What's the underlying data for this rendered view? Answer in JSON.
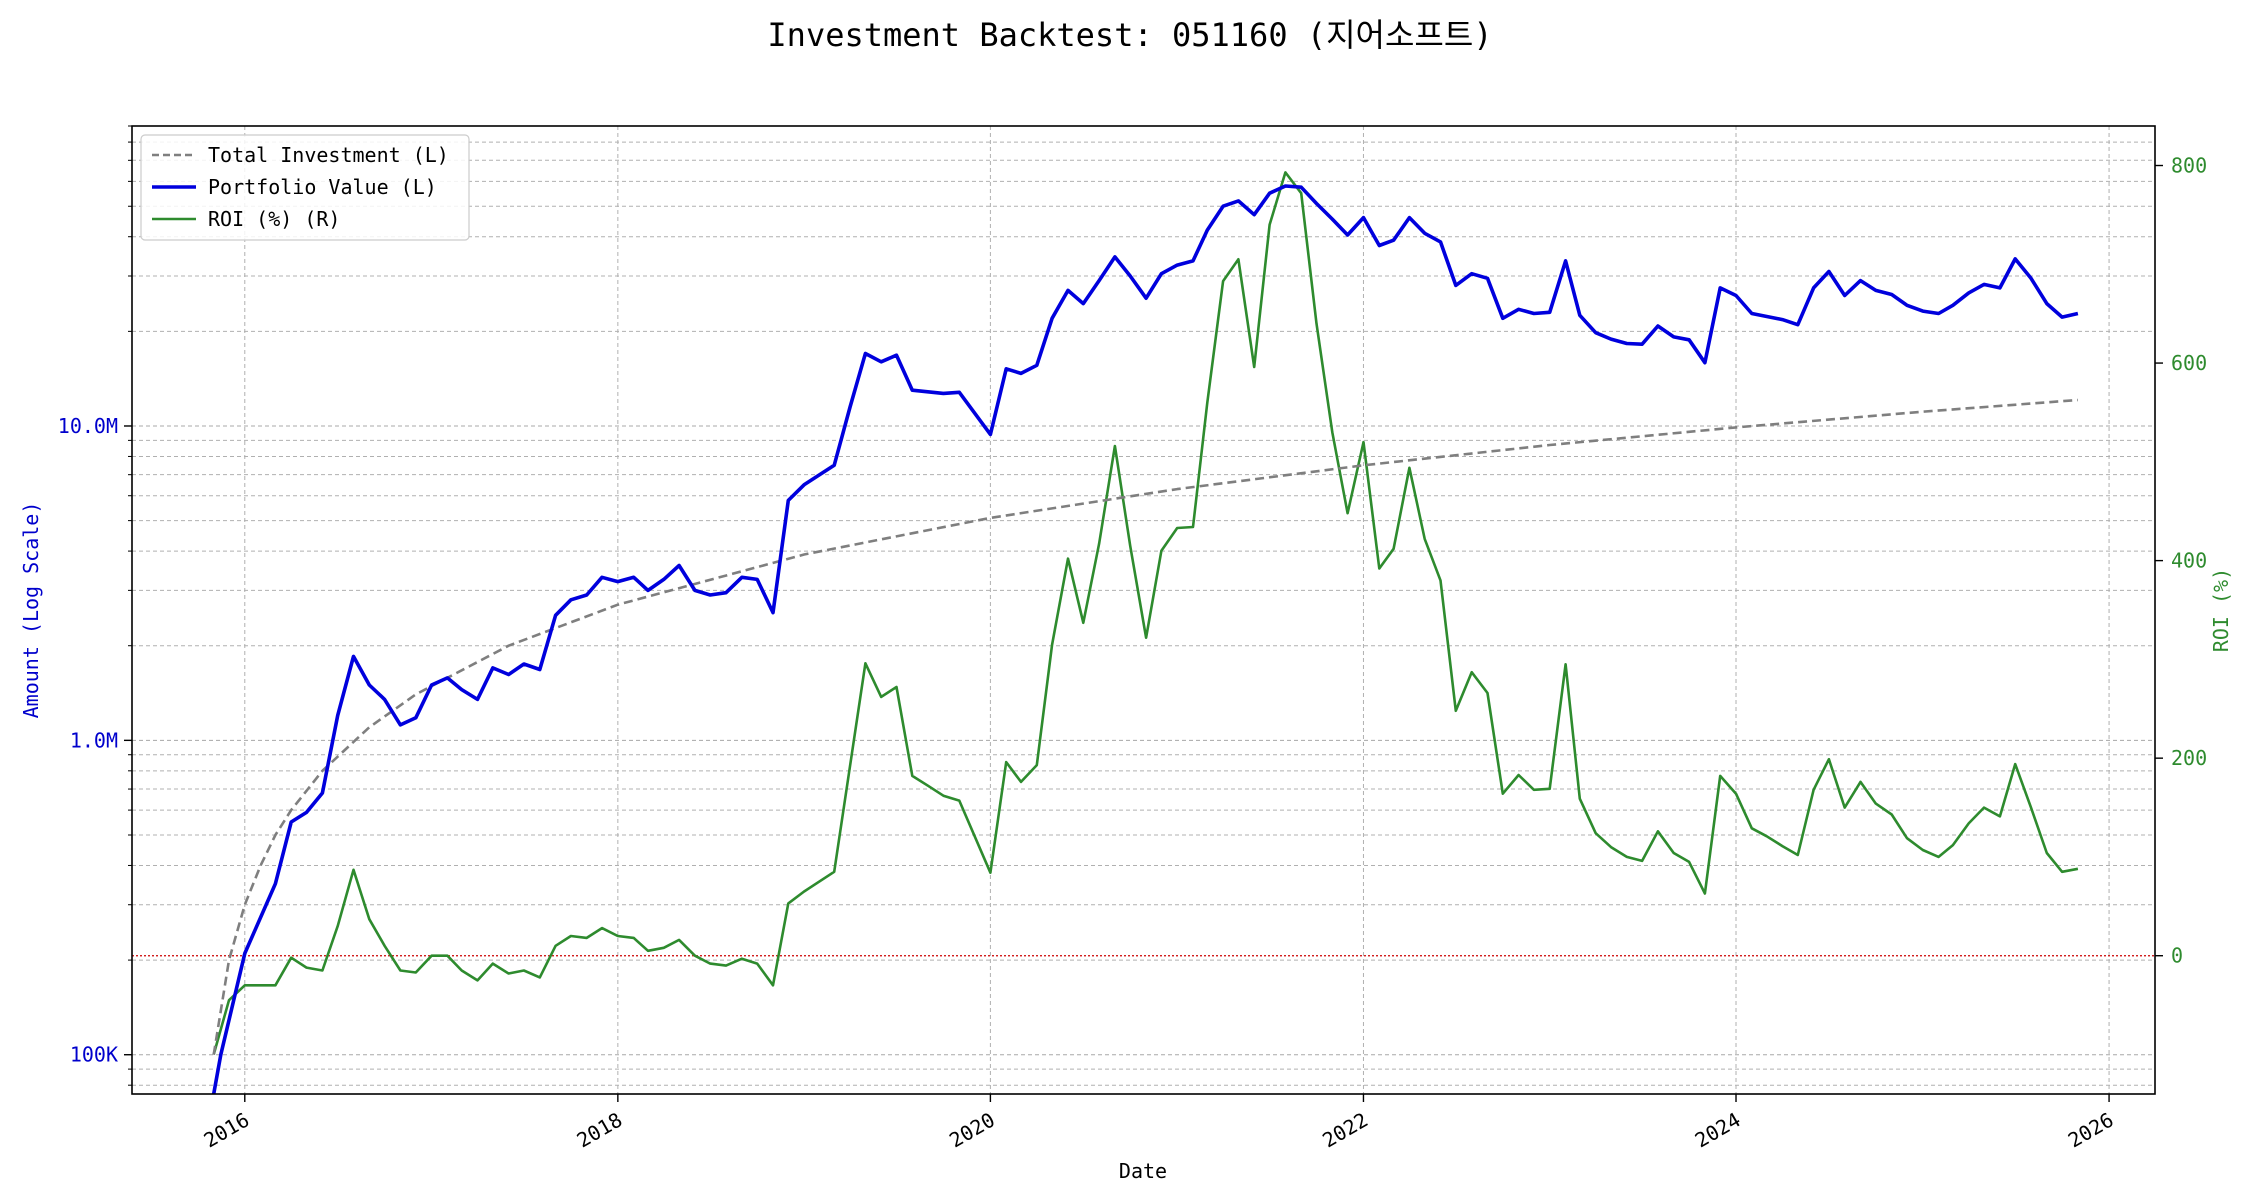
{
  "chart_data": {
    "type": "line",
    "title": "Investment Backtest: 051160 (지어소프트)",
    "xlabel": "Date",
    "ylabel_left": "Amount (Log Scale)",
    "ylabel_right": "ROI (%)",
    "left_scale": "log",
    "left_ylim": [
      75000,
      90000000
    ],
    "right_ylim": [
      -140,
      840
    ],
    "x_range": [
      "2015-05-25",
      "2026-04-01"
    ],
    "x_ticks": [
      {
        "date": "2016-01-01",
        "label": "2016"
      },
      {
        "date": "2018-01-01",
        "label": "2018"
      },
      {
        "date": "2020-01-01",
        "label": "2020"
      },
      {
        "date": "2022-01-01",
        "label": "2022"
      },
      {
        "date": "2024-01-01",
        "label": "2024"
      },
      {
        "date": "2026-01-01",
        "label": "2026"
      }
    ],
    "left_ticks": [
      {
        "value": 100000,
        "label": "100K"
      },
      {
        "value": 1000000,
        "label": "1.0M"
      },
      {
        "value": 10000000,
        "label": "10.0M"
      }
    ],
    "right_ticks": [
      {
        "value": 0,
        "label": "0"
      },
      {
        "value": 200,
        "label": "200"
      },
      {
        "value": 400,
        "label": "400"
      },
      {
        "value": 600,
        "label": "600"
      },
      {
        "value": 800,
        "label": "800"
      }
    ],
    "grid": true,
    "legend_position": "top-left",
    "colors": {
      "total_investment": "#7f7f7f",
      "portfolio_value": "#0000dd",
      "roi": "#2e8b2e",
      "zero_line": "#cc0000",
      "left_axis_text": "#0000cc",
      "right_axis_text": "#2e8b2e"
    },
    "series": [
      {
        "name": "Total Investment (L)",
        "axis": "left",
        "style": "dashed",
        "points": [
          [
            "2015-11-01",
            100000
          ],
          [
            "2015-12-01",
            200000
          ],
          [
            "2016-01-01",
            300000
          ],
          [
            "2016-02-01",
            400000
          ],
          [
            "2016-03-01",
            500000
          ],
          [
            "2016-04-01",
            600000
          ],
          [
            "2016-06-01",
            800000
          ],
          [
            "2016-09-01",
            1100000
          ],
          [
            "2016-12-01",
            1400000
          ],
          [
            "2017-06-01",
            2000000
          ],
          [
            "2018-01-01",
            2700000
          ],
          [
            "2019-01-01",
            3900000
          ],
          [
            "2020-01-01",
            5100000
          ],
          [
            "2021-01-01",
            6300000
          ],
          [
            "2022-01-01",
            7500000
          ],
          [
            "2023-01-01",
            8700000
          ],
          [
            "2024-01-01",
            9900000
          ],
          [
            "2025-01-01",
            11100000
          ],
          [
            "2025-11-01",
            12100000
          ]
        ]
      },
      {
        "name": "Portfolio Value (L)",
        "axis": "left",
        "style": "solid",
        "points": [
          [
            "2015-11-01",
            45000
          ],
          [
            "2015-11-15",
            100000
          ],
          [
            "2016-01-01",
            210000
          ],
          [
            "2016-03-01",
            350000
          ],
          [
            "2016-04-01",
            550000
          ],
          [
            "2016-05-01",
            590000
          ],
          [
            "2016-06-01",
            680000
          ],
          [
            "2016-07-01",
            1200000
          ],
          [
            "2016-08-01",
            1850000
          ],
          [
            "2016-09-01",
            1500000
          ],
          [
            "2016-10-01",
            1350000
          ],
          [
            "2016-11-01",
            1120000
          ],
          [
            "2016-12-01",
            1180000
          ],
          [
            "2017-01-01",
            1500000
          ],
          [
            "2017-02-01",
            1580000
          ],
          [
            "2017-03-01",
            1450000
          ],
          [
            "2017-04-01",
            1350000
          ],
          [
            "2017-05-01",
            1700000
          ],
          [
            "2017-06-01",
            1620000
          ],
          [
            "2017-07-01",
            1750000
          ],
          [
            "2017-08-01",
            1680000
          ],
          [
            "2017-09-01",
            2500000
          ],
          [
            "2017-10-01",
            2800000
          ],
          [
            "2017-11-01",
            2900000
          ],
          [
            "2017-12-01",
            3300000
          ],
          [
            "2018-01-01",
            3200000
          ],
          [
            "2018-02-01",
            3300000
          ],
          [
            "2018-03-01",
            3000000
          ],
          [
            "2018-04-01",
            3250000
          ],
          [
            "2018-05-01",
            3600000
          ],
          [
            "2018-06-01",
            3000000
          ],
          [
            "2018-07-01",
            2900000
          ],
          [
            "2018-08-01",
            2950000
          ],
          [
            "2018-09-01",
            3300000
          ],
          [
            "2018-10-01",
            3250000
          ],
          [
            "2018-11-01",
            2550000
          ],
          [
            "2018-12-01",
            5800000
          ],
          [
            "2019-01-01",
            6500000
          ],
          [
            "2019-03-01",
            7500000
          ],
          [
            "2019-04-01",
            11500000
          ],
          [
            "2019-05-01",
            17000000
          ],
          [
            "2019-06-01",
            16000000
          ],
          [
            "2019-07-01",
            16800000
          ],
          [
            "2019-08-01",
            13000000
          ],
          [
            "2019-10-01",
            12700000
          ],
          [
            "2019-11-01",
            12800000
          ],
          [
            "2020-01-01",
            9400000
          ],
          [
            "2020-02-01",
            15200000
          ],
          [
            "2020-03-01",
            14700000
          ],
          [
            "2020-04-01",
            15600000
          ],
          [
            "2020-05-01",
            22000000
          ],
          [
            "2020-06-01",
            27000000
          ],
          [
            "2020-07-01",
            24500000
          ],
          [
            "2020-08-01",
            29000000
          ],
          [
            "2020-09-01",
            34500000
          ],
          [
            "2020-10-01",
            30000000
          ],
          [
            "2020-11-01",
            25500000
          ],
          [
            "2020-12-01",
            30500000
          ],
          [
            "2021-01-01",
            32500000
          ],
          [
            "2021-02-01",
            33500000
          ],
          [
            "2021-03-01",
            42000000
          ],
          [
            "2021-04-01",
            50000000
          ],
          [
            "2021-05-01",
            52000000
          ],
          [
            "2021-06-01",
            47000000
          ],
          [
            "2021-07-01",
            55000000
          ],
          [
            "2021-08-01",
            58000000
          ],
          [
            "2021-09-01",
            57500000
          ],
          [
            "2021-10-01",
            51000000
          ],
          [
            "2021-11-01",
            45500000
          ],
          [
            "2021-12-01",
            40500000
          ],
          [
            "2022-01-01",
            46000000
          ],
          [
            "2022-02-01",
            37500000
          ],
          [
            "2022-03-01",
            39000000
          ],
          [
            "2022-04-01",
            46000000
          ],
          [
            "2022-05-01",
            41000000
          ],
          [
            "2022-06-01",
            38500000
          ],
          [
            "2022-07-01",
            28000000
          ],
          [
            "2022-08-01",
            30500000
          ],
          [
            "2022-09-01",
            29500000
          ],
          [
            "2022-10-01",
            22000000
          ],
          [
            "2022-11-01",
            23500000
          ],
          [
            "2022-12-01",
            22800000
          ],
          [
            "2023-01-01",
            23000000
          ],
          [
            "2023-02-01",
            33500000
          ],
          [
            "2023-03-01",
            22500000
          ],
          [
            "2023-04-01",
            19800000
          ],
          [
            "2023-05-01",
            18900000
          ],
          [
            "2023-06-01",
            18300000
          ],
          [
            "2023-07-01",
            18200000
          ],
          [
            "2023-08-01",
            20800000
          ],
          [
            "2023-09-01",
            19200000
          ],
          [
            "2023-10-01",
            18800000
          ],
          [
            "2023-11-01",
            15900000
          ],
          [
            "2023-12-01",
            27500000
          ],
          [
            "2024-01-01",
            26000000
          ],
          [
            "2024-02-01",
            22800000
          ],
          [
            "2024-04-01",
            21800000
          ],
          [
            "2024-05-01",
            21000000
          ],
          [
            "2024-06-01",
            27500000
          ],
          [
            "2024-07-01",
            31000000
          ],
          [
            "2024-08-01",
            26000000
          ],
          [
            "2024-09-01",
            29000000
          ],
          [
            "2024-10-01",
            27000000
          ],
          [
            "2024-11-01",
            26200000
          ],
          [
            "2024-12-01",
            24200000
          ],
          [
            "2025-01-01",
            23200000
          ],
          [
            "2025-02-01",
            22800000
          ],
          [
            "2025-03-01",
            24200000
          ],
          [
            "2025-04-01",
            26500000
          ],
          [
            "2025-05-01",
            28200000
          ],
          [
            "2025-06-01",
            27500000
          ],
          [
            "2025-07-01",
            34000000
          ],
          [
            "2025-08-01",
            29500000
          ],
          [
            "2025-09-01",
            24500000
          ],
          [
            "2025-10-01",
            22200000
          ],
          [
            "2025-11-01",
            22800000
          ]
        ]
      },
      {
        "name": "ROI (%) (R)",
        "axis": "right",
        "style": "solid",
        "points": [
          [
            "2015-11-01",
            -100
          ],
          [
            "2015-12-01",
            -45
          ],
          [
            "2016-01-01",
            -30
          ],
          [
            "2016-03-01",
            -30
          ],
          [
            "2016-04-01",
            -2
          ],
          [
            "2016-05-01",
            -12
          ],
          [
            "2016-06-01",
            -15
          ],
          [
            "2016-07-01",
            30
          ],
          [
            "2016-08-01",
            87
          ],
          [
            "2016-09-01",
            37
          ],
          [
            "2016-10-01",
            10
          ],
          [
            "2016-11-01",
            -15
          ],
          [
            "2016-12-01",
            -17
          ],
          [
            "2017-01-01",
            0
          ],
          [
            "2017-02-01",
            0
          ],
          [
            "2017-03-01",
            -15
          ],
          [
            "2017-04-01",
            -25
          ],
          [
            "2017-05-01",
            -8
          ],
          [
            "2017-06-01",
            -18
          ],
          [
            "2017-07-01",
            -15
          ],
          [
            "2017-08-01",
            -22
          ],
          [
            "2017-09-01",
            10
          ],
          [
            "2017-10-01",
            20
          ],
          [
            "2017-11-01",
            18
          ],
          [
            "2017-12-01",
            28
          ],
          [
            "2018-01-01",
            20
          ],
          [
            "2018-02-01",
            18
          ],
          [
            "2018-03-01",
            5
          ],
          [
            "2018-04-01",
            8
          ],
          [
            "2018-05-01",
            16
          ],
          [
            "2018-06-01",
            0
          ],
          [
            "2018-07-01",
            -8
          ],
          [
            "2018-08-01",
            -10
          ],
          [
            "2018-09-01",
            -3
          ],
          [
            "2018-10-01",
            -8
          ],
          [
            "2018-11-01",
            -30
          ],
          [
            "2018-12-01",
            53
          ],
          [
            "2019-01-01",
            65
          ],
          [
            "2019-03-01",
            85
          ],
          [
            "2019-05-01",
            296
          ],
          [
            "2019-06-01",
            262
          ],
          [
            "2019-07-01",
            272
          ],
          [
            "2019-08-01",
            182
          ],
          [
            "2019-09-01",
            172
          ],
          [
            "2019-10-01",
            162
          ],
          [
            "2019-11-01",
            157
          ],
          [
            "2020-01-01",
            84
          ],
          [
            "2020-02-01",
            196
          ],
          [
            "2020-03-01",
            176
          ],
          [
            "2020-04-01",
            193
          ],
          [
            "2020-05-01",
            315
          ],
          [
            "2020-06-01",
            402
          ],
          [
            "2020-07-01",
            337
          ],
          [
            "2020-08-01",
            417
          ],
          [
            "2020-09-01",
            516
          ],
          [
            "2020-10-01",
            415
          ],
          [
            "2020-11-01",
            322
          ],
          [
            "2020-12-01",
            410
          ],
          [
            "2021-01-01",
            433
          ],
          [
            "2021-02-01",
            434
          ],
          [
            "2021-03-01",
            560
          ],
          [
            "2021-04-01",
            683
          ],
          [
            "2021-05-01",
            705
          ],
          [
            "2021-06-01",
            596
          ],
          [
            "2021-07-01",
            740
          ],
          [
            "2021-08-01",
            793
          ],
          [
            "2021-09-01",
            772
          ],
          [
            "2021-10-01",
            640
          ],
          [
            "2021-11-01",
            530
          ],
          [
            "2021-12-01",
            448
          ],
          [
            "2022-01-01",
            520
          ],
          [
            "2022-02-01",
            392
          ],
          [
            "2022-03-01",
            412
          ],
          [
            "2022-04-01",
            494
          ],
          [
            "2022-05-01",
            422
          ],
          [
            "2022-06-01",
            380
          ],
          [
            "2022-07-01",
            248
          ],
          [
            "2022-08-01",
            287
          ],
          [
            "2022-09-01",
            266
          ],
          [
            "2022-10-01",
            164
          ],
          [
            "2022-11-01",
            183
          ],
          [
            "2022-12-01",
            168
          ],
          [
            "2023-01-01",
            169
          ],
          [
            "2023-02-01",
            295
          ],
          [
            "2023-03-01",
            159
          ],
          [
            "2023-04-01",
            124
          ],
          [
            "2023-05-01",
            110
          ],
          [
            "2023-06-01",
            100
          ],
          [
            "2023-07-01",
            96
          ],
          [
            "2023-08-01",
            126
          ],
          [
            "2023-09-01",
            104
          ],
          [
            "2023-10-01",
            95
          ],
          [
            "2023-11-01",
            63
          ],
          [
            "2023-12-01",
            182
          ],
          [
            "2024-01-01",
            164
          ],
          [
            "2024-02-01",
            129
          ],
          [
            "2024-03-01",
            121
          ],
          [
            "2024-04-01",
            111
          ],
          [
            "2024-05-01",
            102
          ],
          [
            "2024-06-01",
            168
          ],
          [
            "2024-07-01",
            199
          ],
          [
            "2024-08-01",
            150
          ],
          [
            "2024-09-01",
            176
          ],
          [
            "2024-10-01",
            154
          ],
          [
            "2024-11-01",
            143
          ],
          [
            "2024-12-01",
            119
          ],
          [
            "2025-01-01",
            107
          ],
          [
            "2025-02-01",
            100
          ],
          [
            "2025-03-01",
            112
          ],
          [
            "2025-04-01",
            134
          ],
          [
            "2025-05-01",
            150
          ],
          [
            "2025-06-01",
            141
          ],
          [
            "2025-07-01",
            194
          ],
          [
            "2025-08-01",
            150
          ],
          [
            "2025-09-01",
            104
          ],
          [
            "2025-10-01",
            85
          ],
          [
            "2025-11-01",
            88
          ]
        ]
      }
    ]
  }
}
